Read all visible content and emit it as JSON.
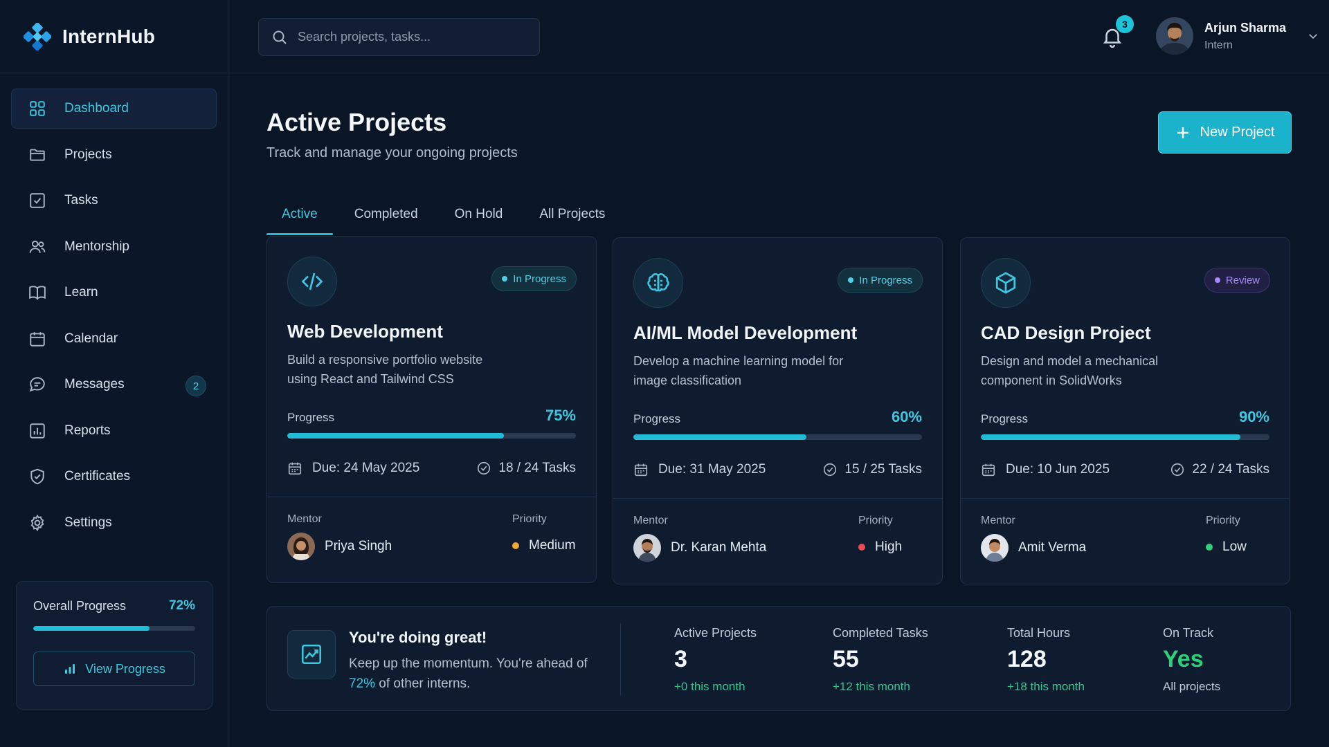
{
  "app": {
    "name": "InternHub"
  },
  "colors": {
    "accent": "#22bcd6",
    "bg": "#0a1526",
    "card": "#0f1c30",
    "review": "#a78bff",
    "medium": "#f0a73c",
    "high": "#ef4b57",
    "low": "#2fd07a"
  },
  "sidebar": {
    "items": [
      {
        "label": "Dashboard",
        "icon": "grid-icon",
        "active": true
      },
      {
        "label": "Projects",
        "icon": "folder-icon"
      },
      {
        "label": "Tasks",
        "icon": "checkbox-icon"
      },
      {
        "label": "Mentorship",
        "icon": "users-icon"
      },
      {
        "label": "Learn",
        "icon": "book-icon"
      },
      {
        "label": "Calendar",
        "icon": "calendar-icon"
      },
      {
        "label": "Messages",
        "icon": "message-icon",
        "badge": "2"
      },
      {
        "label": "Reports",
        "icon": "chart-icon"
      },
      {
        "label": "Certificates",
        "icon": "shield-icon"
      },
      {
        "label": "Settings",
        "icon": "gear-icon"
      }
    ],
    "overall": {
      "label": "Overall Progress",
      "value_text": "72%",
      "value": 72,
      "button": "View Progress"
    }
  },
  "topbar": {
    "search_placeholder": "Search projects, tasks...",
    "notifications": "3",
    "user": {
      "name": "Arjun Sharma",
      "role": "Intern"
    }
  },
  "main": {
    "title": "Active Projects",
    "subtitle": "Track and manage your ongoing projects",
    "new_button": "New Project",
    "tabs": [
      {
        "label": "Active",
        "active": true
      },
      {
        "label": "Completed"
      },
      {
        "label": "On Hold"
      },
      {
        "label": "All Projects"
      }
    ],
    "projects": [
      {
        "icon": "code-icon",
        "status": "In Progress",
        "title": "Web Development",
        "desc": "Build a responsive portfolio website using React and Tailwind CSS",
        "progress_label": "Progress",
        "progress_text": "75%",
        "progress": 75,
        "due": "Due: 24 May 2025",
        "tasks": "18 / 24 Tasks",
        "mentor_label": "Mentor",
        "mentor": "Priya Singh",
        "priority_label": "Priority",
        "priority": "Medium"
      },
      {
        "icon": "brain-icon",
        "status": "In Progress",
        "title": "AI/ML Model Development",
        "desc": "Develop a machine learning model for image classification",
        "progress_label": "Progress",
        "progress_text": "60%",
        "progress": 60,
        "due": "Due: 31 May 2025",
        "tasks": "15 / 25 Tasks",
        "mentor_label": "Mentor",
        "mentor": "Dr. Karan Mehta",
        "priority_label": "Priority",
        "priority": "High"
      },
      {
        "icon": "cube-icon",
        "status": "Review",
        "title": "CAD Design Project",
        "desc": "Design and model a mechanical component in SolidWorks",
        "progress_label": "Progress",
        "progress_text": "90%",
        "progress": 90,
        "due": "Due: 10 Jun 2025",
        "tasks": "22 / 24 Tasks",
        "mentor_label": "Mentor",
        "mentor": "Amit Verma",
        "priority_label": "Priority",
        "priority": "Low"
      }
    ],
    "summary": {
      "title": "You're doing great!",
      "text_before": "Keep up the momentum. You're ahead of ",
      "highlight": "72%",
      "text_after": " of other interns.",
      "stats": [
        {
          "label": "Active Projects",
          "value": "3",
          "delta": "+0 this month"
        },
        {
          "label": "Completed Tasks",
          "value": "55",
          "delta": "+12 this month"
        },
        {
          "label": "Total Hours",
          "value": "128",
          "delta": "+18 this month"
        },
        {
          "label": "On Track",
          "value": "Yes",
          "delta": "All projects"
        }
      ]
    }
  }
}
